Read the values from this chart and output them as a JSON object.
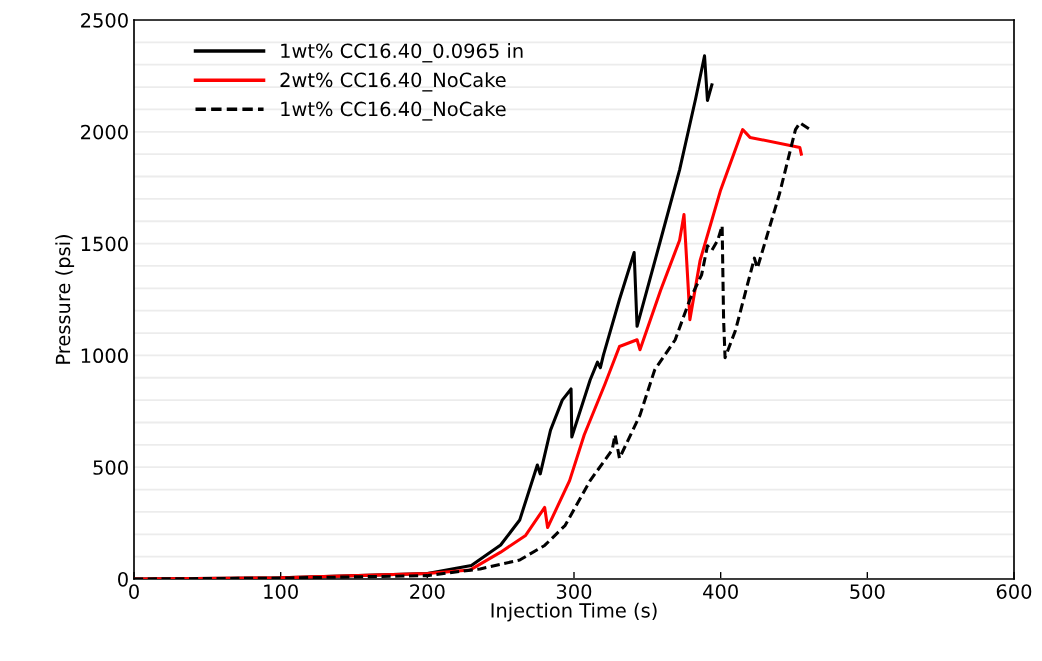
{
  "chart_data": {
    "type": "line",
    "xlabel": "Injection Time (s)",
    "ylabel": "Pressure (psi)",
    "xlim": [
      0,
      600
    ],
    "xticks": [
      0,
      100,
      200,
      300,
      400,
      500,
      600
    ],
    "ylim": [
      0,
      2500
    ],
    "yticks": [
      0,
      {
        "value": 100,
        "label": null
      },
      {
        "value": 200,
        "label": null
      },
      {
        "value": 300,
        "label": null
      },
      {
        "value": 400,
        "label": null
      },
      500,
      {
        "value": 600,
        "label": null
      },
      {
        "value": 700,
        "label": null
      },
      {
        "value": 800,
        "label": null
      },
      {
        "value": 900,
        "label": null
      },
      1000,
      {
        "value": 1100,
        "label": null
      },
      {
        "value": 1200,
        "label": null
      },
      {
        "value": 1300,
        "label": null
      },
      {
        "value": 1400,
        "label": null
      },
      1500,
      {
        "value": 1600,
        "label": null
      },
      {
        "value": 1700,
        "label": null
      },
      {
        "value": 1800,
        "label": null
      },
      {
        "value": 1900,
        "label": null
      },
      2000,
      {
        "value": 2100,
        "label": null
      },
      {
        "value": 2200,
        "label": null
      },
      {
        "value": 2300,
        "label": null
      },
      {
        "value": 2400,
        "label": null
      },
      2500
    ],
    "grid": "y",
    "legend": "top left",
    "marker": "none",
    "series": [
      {
        "name": "1wt% CC16.40_0.0965 in",
        "color": "#000000",
        "line_style": "solid",
        "x": [
          0,
          100,
          200,
          230,
          250,
          263,
          275,
          277,
          284,
          292,
          298,
          298.5,
          311,
          316,
          318,
          320,
          331,
          341,
          343,
          359,
          372,
          383,
          389,
          391,
          394
        ],
        "values": [
          0,
          5,
          25,
          60,
          152,
          264,
          510,
          470,
          666,
          800,
          850,
          635,
          890,
          970,
          945,
          1000,
          1250,
          1460,
          1130,
          1515,
          1830,
          2150,
          2340,
          2140,
          2210
        ]
      },
      {
        "name": "2wt% CC16.40_NoCake",
        "color": "#ff0000",
        "line_style": "solid",
        "x": [
          0,
          100,
          200,
          229,
          250,
          267,
          280,
          282,
          297,
          307,
          321,
          331,
          343,
          345,
          359,
          372,
          375,
          378,
          379,
          386,
          400,
          415,
          420,
          454,
          455
        ],
        "values": [
          0,
          5,
          25,
          40,
          120,
          195,
          320,
          230,
          440,
          645,
          870,
          1040,
          1070,
          1025,
          1290,
          1515,
          1630,
          1290,
          1160,
          1425,
          1740,
          2010,
          1975,
          1930,
          1900
        ]
      },
      {
        "name": "1wt% CC16.40_NoCake",
        "color": "#000000",
        "line_style": "dashed",
        "x": [
          0,
          100,
          200,
          236,
          263,
          280,
          294,
          311,
          326,
          328,
          331,
          345,
          355,
          369,
          379,
          387,
          391,
          394,
          398,
          401,
          402,
          403,
          410,
          420,
          423,
          425,
          440,
          451,
          454,
          462
        ],
        "values": [
          0,
          4,
          15,
          45,
          85,
          150,
          240,
          440,
          577,
          645,
          540,
          733,
          935,
          1070,
          1250,
          1360,
          1490,
          1470,
          1515,
          1580,
          1160,
          990,
          1110,
          1360,
          1435,
          1390,
          1720,
          2010,
          2040,
          2005
        ]
      }
    ]
  }
}
